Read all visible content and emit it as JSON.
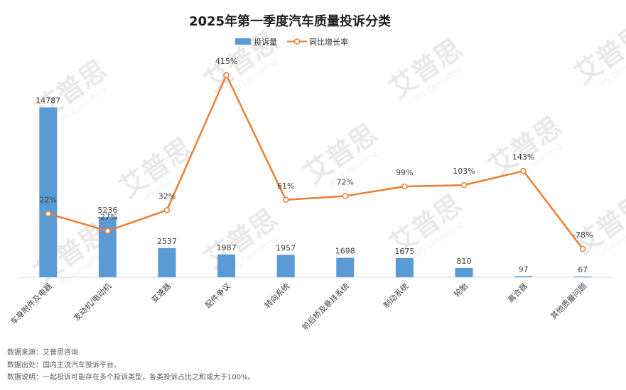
{
  "chart_data": {
    "type": "bar+line",
    "title": "2025年第一季度汽车质量投诉分类",
    "legend": {
      "position": "top-center",
      "items": [
        "投诉量",
        "同比增长率"
      ]
    },
    "categories": [
      "车身附件及电器",
      "发动机/电动机",
      "变速器",
      "配件争议",
      "转向系统",
      "前后桥及悬挂系统",
      "制动系统",
      "轮胎",
      "离合器",
      "其他质量问题"
    ],
    "series": [
      {
        "name": "投诉量",
        "type": "bar",
        "color": "#5b9bd5",
        "values": [
          14787,
          5236,
          2537,
          1987,
          1957,
          1698,
          1675,
          810,
          97,
          67
        ],
        "labels": [
          "14787",
          "5236",
          "2537",
          "1987",
          "1957",
          "1698",
          "1675",
          "810",
          "97",
          "67"
        ]
      },
      {
        "name": "同比增长率",
        "type": "line",
        "color": "#ed7d31",
        "values": [
          22,
          -27,
          32,
          415,
          61,
          72,
          99,
          103,
          143,
          -78
        ],
        "labels": [
          "22%",
          "-27%",
          "32%",
          "415%",
          "61%",
          "72%",
          "99%",
          "103%",
          "143%",
          "-78%"
        ]
      }
    ],
    "bar_axis_range": [
      0,
      15000
    ],
    "line_axis_range": [
      -500,
      500
    ],
    "grid": false
  },
  "watermark": {
    "brand": "艾普思",
    "sub": "IPS Consulting"
  },
  "footnotes": {
    "source": "数据来源：艾普思咨询",
    "origin": "数据出处：国内主流汽车投诉平台。",
    "note": "数据说明：一起投诉可能存在多个投诉类型，各类投诉占比之和或大于100%。"
  }
}
